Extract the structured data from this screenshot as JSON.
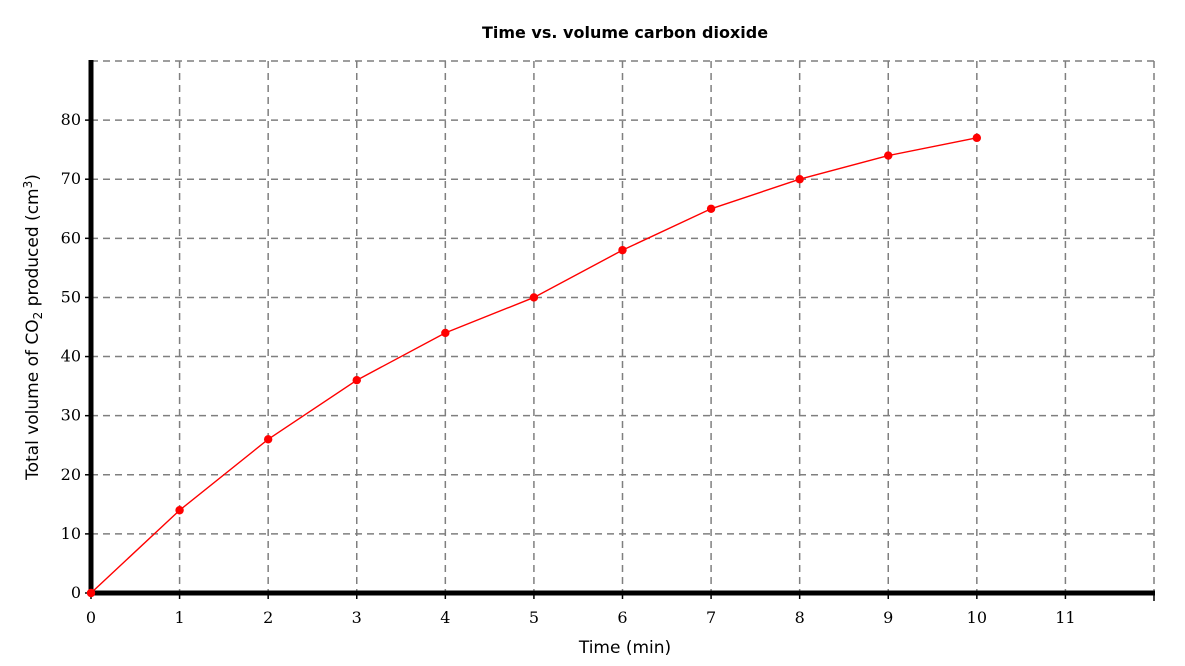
{
  "chart_data": {
    "type": "line",
    "title": "Time vs. volume carbon dioxide",
    "xlabel": "Time (min)",
    "ylabel": {
      "main": "Total volume of CO",
      "sub": "2",
      "mid": " produced (cm",
      "sup": "3",
      "end": ")"
    },
    "xlim": [
      0,
      12
    ],
    "ylim": [
      0,
      90
    ],
    "xticks": [
      0,
      1,
      2,
      3,
      4,
      5,
      6,
      7,
      8,
      9,
      10,
      11
    ],
    "yticks": [
      0,
      10,
      20,
      30,
      40,
      50,
      60,
      70,
      80
    ],
    "xgrid": [
      1,
      2,
      3,
      4,
      5,
      6,
      7,
      8,
      9,
      10,
      11,
      12
    ],
    "ygrid": [
      10,
      20,
      30,
      40,
      50,
      60,
      70,
      80,
      90
    ],
    "grid": true,
    "series": [
      {
        "color": "#ff0000",
        "x": [
          0,
          1,
          2,
          3,
          4,
          5,
          6,
          7,
          8,
          9,
          10
        ],
        "y": [
          0,
          14,
          26,
          36,
          44,
          50,
          58,
          65,
          70,
          74,
          77
        ]
      }
    ]
  }
}
